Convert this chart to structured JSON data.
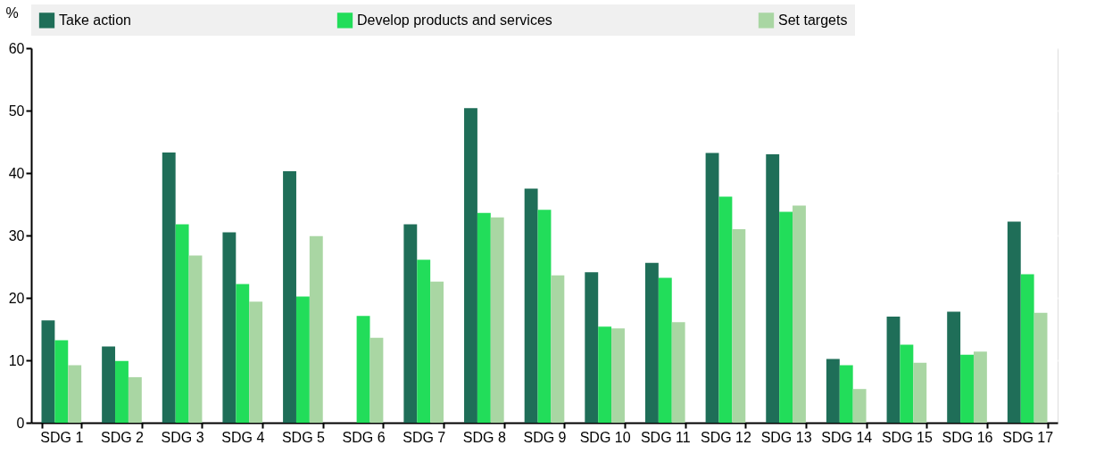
{
  "chart_data": {
    "type": "bar",
    "ylabel": "%",
    "categories": [
      "SDG 1",
      "SDG 2",
      "SDG 3",
      "SDG 4",
      "SDG 5",
      "SDG 6",
      "SDG 7",
      "SDG 8",
      "SDG 9",
      "SDG 10",
      "SDG 11",
      "SDG 12",
      "SDG 13",
      "SDG 14",
      "SDG 15",
      "SDG 16",
      "SDG 17"
    ],
    "series": [
      {
        "name": "Take action",
        "color": "#1f6e58",
        "values": [
          16.4,
          12.2,
          43.3,
          30.5,
          40.3,
          null,
          31.8,
          50.4,
          37.5,
          24.1,
          25.6,
          43.2,
          43.0,
          10.2,
          17.0,
          17.8,
          32.2
        ]
      },
      {
        "name": "Develop products and services",
        "color": "#22dd5a",
        "values": [
          13.2,
          9.9,
          31.8,
          22.2,
          20.2,
          17.1,
          26.1,
          33.6,
          34.1,
          15.4,
          23.2,
          36.2,
          33.8,
          9.2,
          12.5,
          10.9,
          23.8
        ]
      },
      {
        "name": "Set targets",
        "color": "#a9d6a3",
        "values": [
          9.2,
          7.3,
          26.8,
          19.4,
          29.9,
          13.6,
          22.6,
          32.9,
          23.6,
          15.1,
          16.1,
          31.0,
          34.8,
          5.4,
          9.6,
          11.4,
          17.6
        ]
      }
    ],
    "ylim": [
      0,
      60
    ],
    "yticks": [
      0,
      10,
      20,
      30,
      40,
      50,
      60
    ],
    "grid": true,
    "legend": "top"
  }
}
